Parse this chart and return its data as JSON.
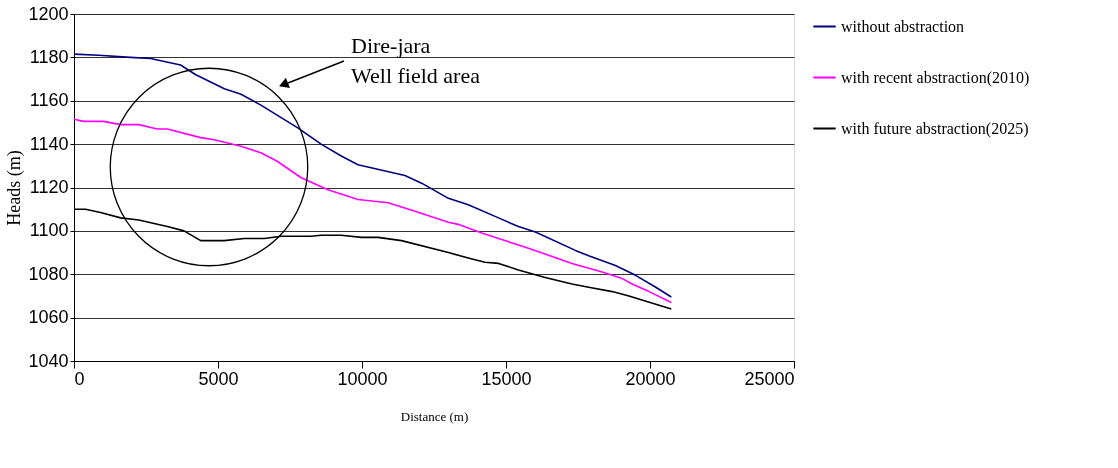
{
  "chart_data": {
    "type": "line",
    "xlabel": "Distance (m)",
    "ylabel": "Heads (m)",
    "xlim": [
      0,
      25000
    ],
    "xticks": [
      0,
      5000,
      10000,
      15000,
      20000,
      25000
    ],
    "ylim": [
      1040,
      1200
    ],
    "yticks": [
      1040,
      1060,
      1080,
      1100,
      1120,
      1140,
      1160,
      1180,
      1200
    ],
    "grid": "y",
    "legend": "right",
    "marker": "none",
    "line_style": "solid",
    "annotations": [
      "Dire-jara",
      "Well field area"
    ],
    "series": [
      {
        "name": "without abstraction",
        "color": "#000080",
        "x": [
          0,
          860,
          1960,
          2660,
          3700,
          4230,
          5220,
          5800,
          6490,
          7770,
          8580,
          9280,
          9860,
          11490,
          12070,
          13000,
          13690,
          14740,
          15430,
          16020,
          17410,
          17870,
          18800,
          19500,
          20200,
          20740
        ],
        "values": [
          1181.5,
          1181,
          1180,
          1179.5,
          1176.5,
          1172,
          1165.5,
          1163,
          1158,
          1147.5,
          1140,
          1134.5,
          1130.5,
          1125.5,
          1122,
          1115,
          1112,
          1106,
          1102,
          1099.5,
          1091,
          1088.5,
          1084,
          1079.5,
          1074,
          1069.5
        ]
      },
      {
        "name": "with recent abstraction(2010)",
        "color": "#ff00ff",
        "x": [
          0,
          340,
          1030,
          1620,
          2250,
          2890,
          3240,
          4400,
          4870,
          5800,
          6490,
          7070,
          7890,
          8820,
          9860,
          10910,
          11840,
          13000,
          13340,
          14160,
          14740,
          15780,
          17290,
          18340,
          19040,
          19380,
          19970,
          20740
        ],
        "values": [
          1151.5,
          1150.5,
          1150.5,
          1149,
          1149,
          1147,
          1147,
          1143,
          1142,
          1139,
          1136,
          1132,
          1124.5,
          1119,
          1114.5,
          1113,
          1109,
          1104,
          1103,
          1099,
          1096.5,
          1092,
          1085,
          1081,
          1078,
          1075.5,
          1072,
          1067
        ]
      },
      {
        "name": "with future abstraction(2025)",
        "color": "#000000",
        "x": [
          0,
          400,
          920,
          1620,
          2250,
          3240,
          3820,
          4400,
          5220,
          5910,
          6610,
          7190,
          8240,
          8580,
          9280,
          9980,
          10560,
          11370,
          13000,
          13690,
          14270,
          14740,
          15430,
          16360,
          17290,
          17870,
          18690,
          19270,
          20740
        ],
        "values": [
          1110,
          1110,
          1108.5,
          1106,
          1105,
          1102,
          1100,
          1095.5,
          1095.5,
          1096.5,
          1096.5,
          1097.5,
          1097.5,
          1098,
          1098,
          1097,
          1097,
          1095.5,
          1090,
          1087.5,
          1085.5,
          1085,
          1082,
          1078.5,
          1075.5,
          1074,
          1072,
          1070,
          1064
        ]
      }
    ]
  }
}
